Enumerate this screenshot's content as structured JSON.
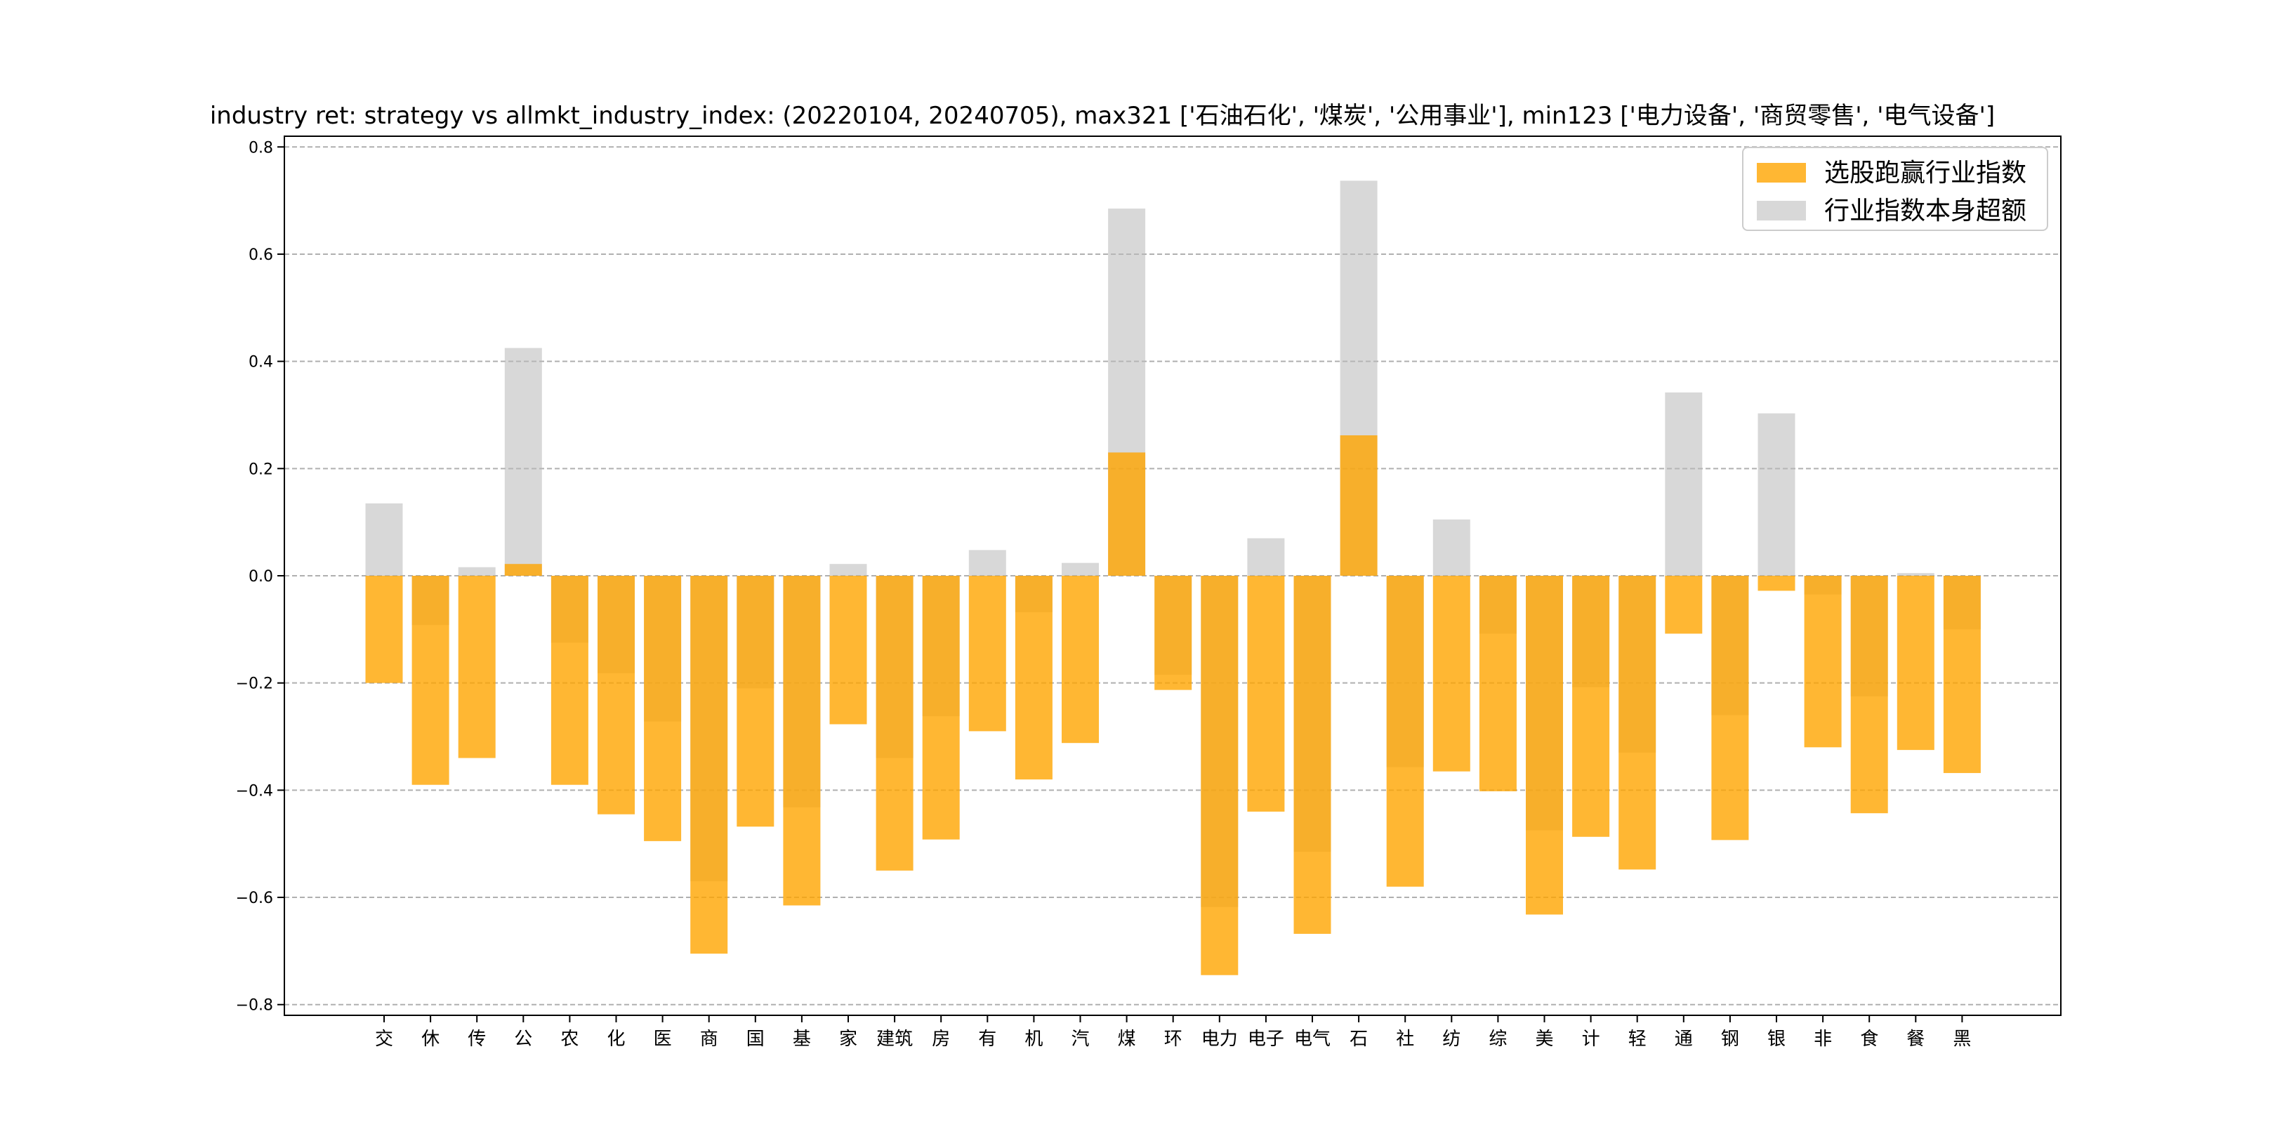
{
  "chart_data": {
    "type": "bar",
    "title": "industry ret: strategy vs allmkt_industry_index: (20220104, 20240705), max321 ['石油石化', '煤炭', '公用事业'], min123 ['电力设备', '商贸零售', '电气设备']",
    "xlabel": "",
    "ylabel": "",
    "ylim": [
      -0.82,
      0.82
    ],
    "yticks": [
      -0.8,
      -0.6,
      -0.4,
      -0.2,
      0.0,
      0.2,
      0.4,
      0.6,
      0.8
    ],
    "ytick_labels": [
      "−0.8",
      "−0.6",
      "−0.4",
      "−0.2",
      "0.0",
      "0.2",
      "0.4",
      "0.6",
      "0.8"
    ],
    "grid": "horizontal dashed",
    "legend_position": "top-right",
    "categories": [
      "交",
      "休",
      "传",
      "公",
      "农",
      "化",
      "医",
      "商",
      "国",
      "基",
      "家",
      "建筑",
      "房",
      "有",
      "机",
      "汽",
      "煤",
      "环",
      "电力",
      "电子",
      "电气",
      "石",
      "社",
      "纺",
      "综",
      "美",
      "计",
      "轻",
      "通",
      "钢",
      "银",
      "非",
      "食",
      "餐",
      "黑"
    ],
    "series": [
      {
        "name": "选股跑赢行业指数",
        "color": "#FFA500",
        "values": [
          -0.2,
          -0.39,
          -0.34,
          0.022,
          -0.39,
          -0.445,
          -0.495,
          -0.705,
          -0.468,
          -0.615,
          -0.277,
          -0.55,
          -0.492,
          -0.29,
          -0.38,
          -0.312,
          0.23,
          -0.213,
          -0.745,
          -0.44,
          -0.668,
          0.262,
          -0.58,
          -0.365,
          -0.402,
          -0.632,
          -0.487,
          -0.548,
          -0.108,
          -0.493,
          -0.028,
          -0.32,
          -0.443,
          -0.325,
          -0.368
        ]
      },
      {
        "name": "行业指数本身超额",
        "color": "#BBBBBB",
        "values": [
          0.135,
          -0.092,
          0.016,
          0.425,
          -0.125,
          -0.182,
          -0.272,
          -0.57,
          -0.21,
          -0.432,
          0.022,
          -0.34,
          -0.262,
          0.048,
          -0.068,
          0.024,
          0.685,
          -0.185,
          -0.618,
          0.07,
          -0.515,
          0.737,
          -0.357,
          0.105,
          -0.108,
          -0.475,
          -0.208,
          -0.33,
          0.342,
          -0.26,
          0.303,
          -0.035,
          -0.225,
          0.005,
          -0.1
        ]
      }
    ]
  }
}
